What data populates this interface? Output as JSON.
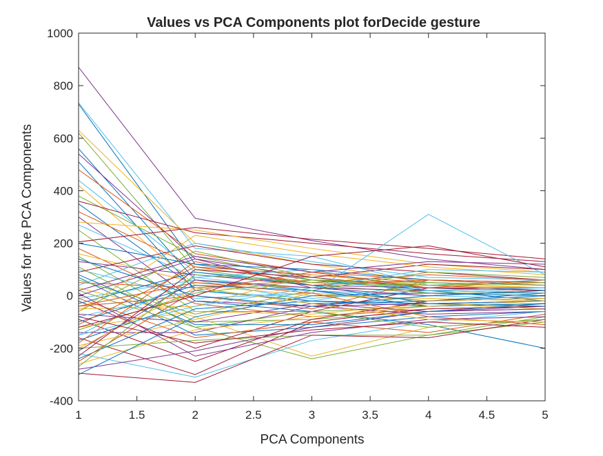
{
  "chart_data": {
    "type": "line",
    "title": "Values vs PCA Components plot forDecide gesture",
    "xlabel": "PCA Components",
    "ylabel": "Values for the PCA Components",
    "xlim": [
      1,
      5
    ],
    "ylim": [
      -400,
      1000
    ],
    "x_ticks": [
      "1",
      "1.5",
      "2",
      "2.5",
      "3",
      "3.5",
      "4",
      "4.5",
      "5"
    ],
    "y_ticks": [
      "-400",
      "-200",
      "0",
      "200",
      "400",
      "600",
      "800",
      "1000"
    ],
    "grid": false,
    "legend": "none",
    "x": [
      1,
      2,
      3,
      4,
      5
    ],
    "series": [
      {
        "color": "#7E2F8E",
        "values": [
          870,
          295,
          210,
          140,
          100
        ]
      },
      {
        "color": "#4DBEEE",
        "values": [
          735,
          180,
          150,
          40,
          60
        ]
      },
      {
        "color": "#0072BD",
        "values": [
          730,
          120,
          60,
          20,
          -20
        ]
      },
      {
        "color": "#EDB120",
        "values": [
          630,
          200,
          120,
          50,
          30
        ]
      },
      {
        "color": "#77AC30",
        "values": [
          620,
          100,
          40,
          10,
          10
        ]
      },
      {
        "color": "#0072BD",
        "values": [
          560,
          60,
          20,
          -20,
          0
        ]
      },
      {
        "color": "#7E2F8E",
        "values": [
          540,
          140,
          70,
          30,
          20
        ]
      },
      {
        "color": "#0072BD",
        "values": [
          510,
          20,
          -20,
          -40,
          -30
        ]
      },
      {
        "color": "#D95319",
        "values": [
          480,
          160,
          90,
          60,
          40
        ]
      },
      {
        "color": "#4DBEEE",
        "values": [
          440,
          90,
          50,
          30,
          10
        ]
      },
      {
        "color": "#EDB120",
        "values": [
          420,
          40,
          0,
          -10,
          -20
        ]
      },
      {
        "color": "#77AC30",
        "values": [
          380,
          150,
          60,
          30,
          20
        ]
      },
      {
        "color": "#A2142F",
        "values": [
          360,
          240,
          200,
          160,
          130
        ]
      },
      {
        "color": "#0072BD",
        "values": [
          350,
          30,
          -30,
          -20,
          10
        ]
      },
      {
        "color": "#D95319",
        "values": [
          320,
          110,
          80,
          50,
          40
        ]
      },
      {
        "color": "#7E2F8E",
        "values": [
          300,
          -20,
          -40,
          -30,
          -20
        ]
      },
      {
        "color": "#EDB120",
        "values": [
          280,
          250,
          180,
          120,
          90
        ]
      },
      {
        "color": "#4DBEEE",
        "values": [
          270,
          70,
          20,
          0,
          -10
        ]
      },
      {
        "color": "#77AC30",
        "values": [
          250,
          -60,
          -60,
          -40,
          -30
        ]
      },
      {
        "color": "#A2142F",
        "values": [
          205,
          260,
          215,
          180,
          140
        ]
      },
      {
        "color": "#0072BD",
        "values": [
          200,
          120,
          100,
          60,
          50
        ]
      },
      {
        "color": "#D95319",
        "values": [
          180,
          -30,
          -80,
          -50,
          -40
        ]
      },
      {
        "color": "#EDB120",
        "values": [
          160,
          50,
          30,
          20,
          10
        ]
      },
      {
        "color": "#77AC30",
        "values": [
          150,
          -100,
          -90,
          -60,
          -50
        ]
      },
      {
        "color": "#7E2F8E",
        "values": [
          130,
          80,
          40,
          30,
          30
        ]
      },
      {
        "color": "#4DBEEE",
        "values": [
          100,
          -10,
          10,
          310,
          80
        ]
      },
      {
        "color": "#A2142F",
        "values": [
          90,
          190,
          120,
          90,
          60
        ]
      },
      {
        "color": "#0072BD",
        "values": [
          70,
          -150,
          -120,
          -80,
          -60
        ]
      },
      {
        "color": "#D95319",
        "values": [
          50,
          30,
          60,
          40,
          20
        ]
      },
      {
        "color": "#EDB120",
        "values": [
          30,
          -80,
          -230,
          -120,
          -90
        ]
      },
      {
        "color": "#77AC30",
        "values": [
          20,
          -120,
          -240,
          -150,
          -100
        ]
      },
      {
        "color": "#7E2F8E",
        "values": [
          0,
          140,
          30,
          20,
          10
        ]
      },
      {
        "color": "#4DBEEE",
        "values": [
          -10,
          60,
          -20,
          50,
          40
        ]
      },
      {
        "color": "#A2142F",
        "values": [
          -20,
          -200,
          -60,
          30,
          20
        ]
      },
      {
        "color": "#0072BD",
        "values": [
          -30,
          90,
          40,
          -30,
          -20
        ]
      },
      {
        "color": "#D95319",
        "values": [
          -40,
          0,
          -50,
          60,
          50
        ]
      },
      {
        "color": "#EDB120",
        "values": [
          -50,
          -40,
          80,
          40,
          30
        ]
      },
      {
        "color": "#77AC30",
        "values": [
          -60,
          170,
          70,
          10,
          0
        ]
      },
      {
        "color": "#7E2F8E",
        "values": [
          -70,
          -100,
          -30,
          -60,
          -40
        ]
      },
      {
        "color": "#4DBEEE",
        "values": [
          -80,
          20,
          -10,
          20,
          10
        ]
      },
      {
        "color": "#A2142F",
        "values": [
          -90,
          -250,
          -90,
          -20,
          -10
        ]
      },
      {
        "color": "#0072BD",
        "values": [
          -100,
          40,
          20,
          -40,
          -30
        ]
      },
      {
        "color": "#D95319",
        "values": [
          -110,
          110,
          50,
          80,
          60
        ]
      },
      {
        "color": "#EDB120",
        "values": [
          -120,
          -60,
          -70,
          -30,
          -50
        ]
      },
      {
        "color": "#77AC30",
        "values": [
          -130,
          10,
          60,
          50,
          40
        ]
      },
      {
        "color": "#7E2F8E",
        "values": [
          -140,
          -140,
          -40,
          -70,
          -60
        ]
      },
      {
        "color": "#4DBEEE",
        "values": [
          -150,
          70,
          100,
          20,
          30
        ]
      },
      {
        "color": "#A2142F",
        "values": [
          -160,
          -300,
          -100,
          -50,
          -40
        ]
      },
      {
        "color": "#0072BD",
        "values": [
          -170,
          -20,
          -60,
          -110,
          -200
        ]
      },
      {
        "color": "#D95319",
        "values": [
          -180,
          130,
          40,
          60,
          50
        ]
      },
      {
        "color": "#EDB120",
        "values": [
          -190,
          -90,
          10,
          -20,
          -10
        ]
      },
      {
        "color": "#77AC30",
        "values": [
          -200,
          -170,
          -150,
          -150,
          -80
        ]
      },
      {
        "color": "#7E2F8E",
        "values": [
          -210,
          60,
          30,
          0,
          20
        ]
      },
      {
        "color": "#4DBEEE",
        "values": [
          -220,
          -310,
          -170,
          -100,
          -60
        ]
      },
      {
        "color": "#A2142F",
        "values": [
          -230,
          100,
          70,
          120,
          100
        ]
      },
      {
        "color": "#0072BD",
        "values": [
          -240,
          -50,
          -20,
          -30,
          -40
        ]
      },
      {
        "color": "#D95319",
        "values": [
          -250,
          20,
          90,
          30,
          60
        ]
      },
      {
        "color": "#EDB120",
        "values": [
          -260,
          -130,
          -80,
          -40,
          -20
        ]
      },
      {
        "color": "#77AC30",
        "values": [
          -270,
          80,
          50,
          40,
          50
        ]
      },
      {
        "color": "#7E2F8E",
        "values": [
          -280,
          -210,
          -120,
          -60,
          -50
        ]
      },
      {
        "color": "#A2142F",
        "values": [
          -295,
          -330,
          -150,
          -160,
          -90
        ]
      },
      {
        "color": "#0072BD",
        "values": [
          -300,
          -80,
          0,
          10,
          0
        ]
      },
      {
        "color": "#D95319",
        "values": [
          -10,
          -160,
          -100,
          -140,
          -70
        ]
      },
      {
        "color": "#4DBEEE",
        "values": [
          40,
          200,
          130,
          70,
          60
        ]
      },
      {
        "color": "#77AC30",
        "values": [
          60,
          -70,
          20,
          90,
          70
        ]
      },
      {
        "color": "#EDB120",
        "values": [
          -60,
          230,
          160,
          110,
          80
        ]
      },
      {
        "color": "#7E2F8E",
        "values": [
          10,
          -230,
          -140,
          -90,
          -80
        ]
      },
      {
        "color": "#A2142F",
        "values": [
          -120,
          0,
          150,
          190,
          110
        ]
      },
      {
        "color": "#0072BD",
        "values": [
          80,
          -110,
          -110,
          -60,
          -30
        ]
      },
      {
        "color": "#D95319",
        "values": [
          -40,
          50,
          10,
          -80,
          -110
        ]
      },
      {
        "color": "#4DBEEE",
        "values": [
          -150,
          -40,
          30,
          100,
          90
        ]
      },
      {
        "color": "#77AC30",
        "values": [
          110,
          -120,
          -60,
          -120,
          -90
        ]
      },
      {
        "color": "#EDB120",
        "values": [
          -200,
          30,
          -30,
          -90,
          -100
        ]
      },
      {
        "color": "#7E2F8E",
        "values": [
          20,
          150,
          90,
          130,
          120
        ]
      },
      {
        "color": "#A2142F",
        "values": [
          -80,
          -180,
          -130,
          -100,
          -120
        ]
      },
      {
        "color": "#0072BD",
        "values": [
          140,
          0,
          -40,
          0,
          20
        ]
      }
    ]
  }
}
